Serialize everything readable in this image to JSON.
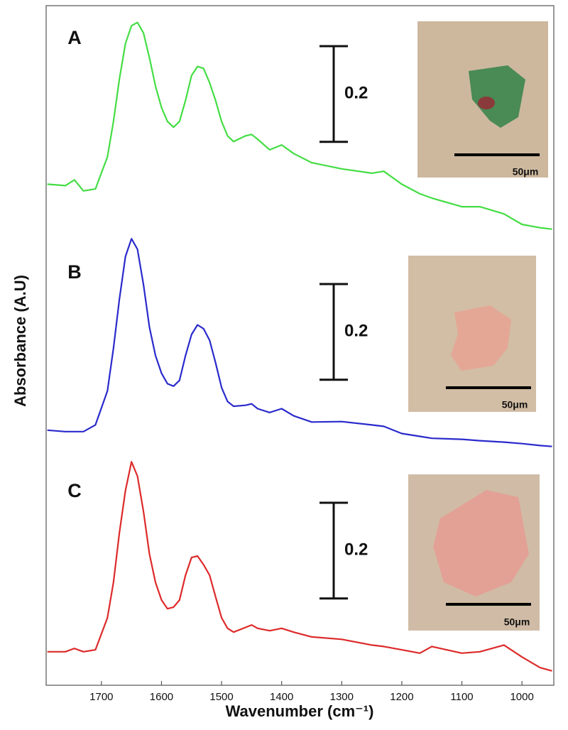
{
  "chart_data": {
    "type": "line",
    "xlabel": "Wavenumber (cm⁻¹)",
    "ylabel": "Absorbance (A.U)",
    "xlim": [
      1792,
      947
    ],
    "xticks": [
      1700,
      1600,
      1500,
      1400,
      1300,
      1200,
      1100,
      1000
    ],
    "ylim": [
      0,
      1.42
    ],
    "x": [
      1790,
      1760,
      1745,
      1730,
      1710,
      1690,
      1680,
      1670,
      1660,
      1650,
      1640,
      1630,
      1620,
      1610,
      1600,
      1590,
      1580,
      1570,
      1560,
      1550,
      1540,
      1530,
      1520,
      1510,
      1500,
      1490,
      1480,
      1460,
      1450,
      1440,
      1420,
      1400,
      1380,
      1350,
      1300,
      1250,
      1230,
      1200,
      1170,
      1150,
      1100,
      1070,
      1030,
      1000,
      970,
      950
    ],
    "series": [
      {
        "name": "A",
        "color": "#44dd44",
        "values": [
          1.047,
          1.044,
          1.056,
          1.033,
          1.037,
          1.104,
          1.178,
          1.267,
          1.341,
          1.378,
          1.385,
          1.363,
          1.311,
          1.252,
          1.207,
          1.178,
          1.166,
          1.178,
          1.222,
          1.274,
          1.293,
          1.289,
          1.259,
          1.222,
          1.178,
          1.148,
          1.136,
          1.148,
          1.151,
          1.141,
          1.119,
          1.129,
          1.111,
          1.092,
          1.079,
          1.07,
          1.074,
          1.047,
          1.027,
          1.018,
          1.0,
          1.0,
          0.985,
          0.963,
          0.956,
          0.953
        ]
      },
      {
        "name": "B",
        "color": "#2a2acc",
        "values": [
          0.533,
          0.53,
          0.53,
          0.53,
          0.544,
          0.615,
          0.704,
          0.807,
          0.896,
          0.933,
          0.911,
          0.837,
          0.748,
          0.689,
          0.652,
          0.63,
          0.625,
          0.637,
          0.689,
          0.733,
          0.753,
          0.745,
          0.721,
          0.674,
          0.622,
          0.593,
          0.583,
          0.585,
          0.588,
          0.578,
          0.57,
          0.578,
          0.563,
          0.55,
          0.551,
          0.544,
          0.541,
          0.526,
          0.52,
          0.516,
          0.514,
          0.511,
          0.508,
          0.505,
          0.501,
          0.499
        ]
      },
      {
        "name": "C",
        "color": "#dd2a2a",
        "values": [
          0.07,
          0.07,
          0.077,
          0.07,
          0.074,
          0.141,
          0.215,
          0.319,
          0.407,
          0.467,
          0.437,
          0.363,
          0.274,
          0.215,
          0.178,
          0.16,
          0.163,
          0.178,
          0.23,
          0.267,
          0.27,
          0.252,
          0.23,
          0.185,
          0.141,
          0.119,
          0.111,
          0.121,
          0.126,
          0.119,
          0.114,
          0.119,
          0.111,
          0.101,
          0.096,
          0.084,
          0.081,
          0.074,
          0.067,
          0.081,
          0.067,
          0.07,
          0.084,
          0.059,
          0.037,
          0.03
        ]
      }
    ],
    "scale_bars": [
      0.2,
      0.2,
      0.2
    ],
    "inset_scale_labels": [
      "50μm",
      "50μm",
      "50μm"
    ]
  }
}
